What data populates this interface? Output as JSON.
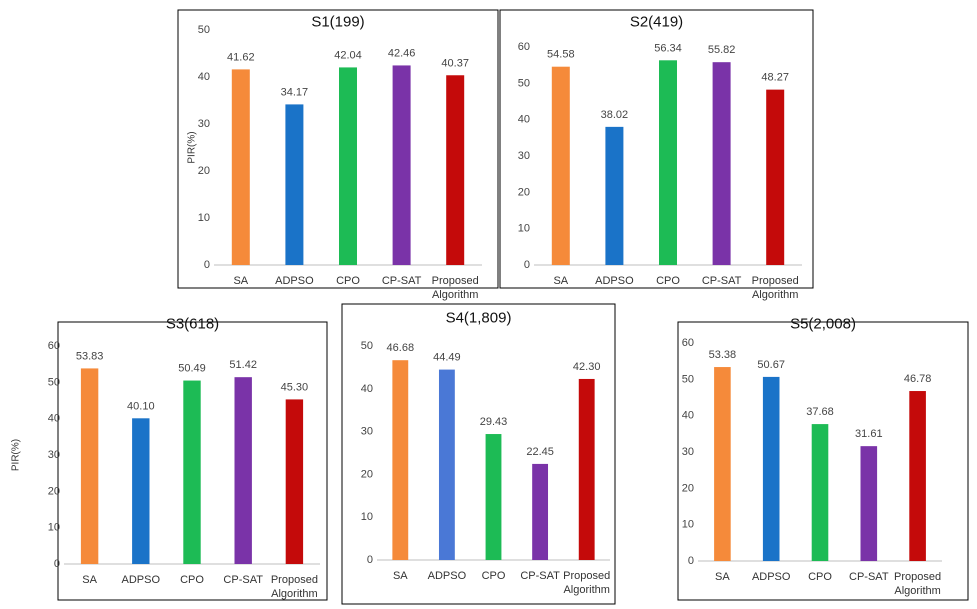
{
  "chart_data": [
    {
      "type": "bar",
      "title": "S1(199)",
      "ylabel": "PIR(%)",
      "categories": [
        "SA",
        "ADPSO",
        "CPO",
        "CP-SAT",
        "Proposed Algorithm"
      ],
      "values": [
        41.62,
        34.17,
        42.04,
        42.46,
        40.37
      ],
      "labels": [
        "41.62",
        "34.17",
        "42.04",
        "42.46",
        "40.37"
      ],
      "ylim": [
        0,
        50
      ],
      "yticks": [
        0,
        10,
        20,
        30,
        40,
        50
      ],
      "colors": [
        "#f58a3a",
        "#1a73c8",
        "#1dbb55",
        "#7a33a8",
        "#c40a0a"
      ]
    },
    {
      "type": "bar",
      "title": "S2(419)",
      "ylabel": "",
      "categories": [
        "SA",
        "ADPSO",
        "CPO",
        "CP-SAT",
        "Proposed Algorithm"
      ],
      "values": [
        54.58,
        38.02,
        56.34,
        55.82,
        48.27
      ],
      "labels": [
        "54.58",
        "38.02",
        "56.34",
        "55.82",
        "48.27"
      ],
      "ylim": [
        0,
        60
      ],
      "yticks": [
        0,
        10,
        20,
        30,
        40,
        50,
        60
      ],
      "colors": [
        "#f58a3a",
        "#1a73c8",
        "#1dbb55",
        "#7a33a8",
        "#c40a0a"
      ]
    },
    {
      "type": "bar",
      "title": "S3(618)",
      "ylabel": "PIR(%)",
      "categories": [
        "SA",
        "ADPSO",
        "CPO",
        "CP-SAT",
        "Proposed Algorithm"
      ],
      "values": [
        53.83,
        40.1,
        50.49,
        51.42,
        45.3
      ],
      "labels": [
        "53.83",
        "40.10",
        "50.49",
        "51.42",
        "45.30"
      ],
      "ylim": [
        0,
        60
      ],
      "yticks": [
        0,
        10,
        20,
        30,
        40,
        50,
        60
      ],
      "colors": [
        "#f58a3a",
        "#1a73c8",
        "#1dbb55",
        "#7a33a8",
        "#c40a0a"
      ]
    },
    {
      "type": "bar",
      "title": "S4(1,809)",
      "ylabel": "",
      "categories": [
        "SA",
        "ADPSO",
        "CPO",
        "CP-SAT",
        "Proposed Algorithm"
      ],
      "values": [
        46.68,
        44.49,
        29.43,
        22.45,
        42.3
      ],
      "labels": [
        "46.68",
        "44.49",
        "29.43",
        "22.45",
        "42.30"
      ],
      "ylim": [
        0,
        50
      ],
      "yticks": [
        0,
        10,
        20,
        30,
        40,
        50
      ],
      "colors": [
        "#f58a3a",
        "#4a78d6",
        "#1dbb55",
        "#7a33a8",
        "#c40a0a"
      ]
    },
    {
      "type": "bar",
      "title": "S5(2,008)",
      "ylabel": "",
      "categories": [
        "SA",
        "ADPSO",
        "CPO",
        "CP-SAT",
        "Proposed Algorithm"
      ],
      "values": [
        53.38,
        50.67,
        37.68,
        31.61,
        46.78
      ],
      "labels": [
        "53.38",
        "50.67",
        "37.68",
        "31.61",
        "46.78"
      ],
      "ylim": [
        0,
        60
      ],
      "yticks": [
        0,
        10,
        20,
        30,
        40,
        50,
        60
      ],
      "colors": [
        "#f58a3a",
        "#1a73c8",
        "#1dbb55",
        "#7a33a8",
        "#c40a0a"
      ]
    }
  ]
}
